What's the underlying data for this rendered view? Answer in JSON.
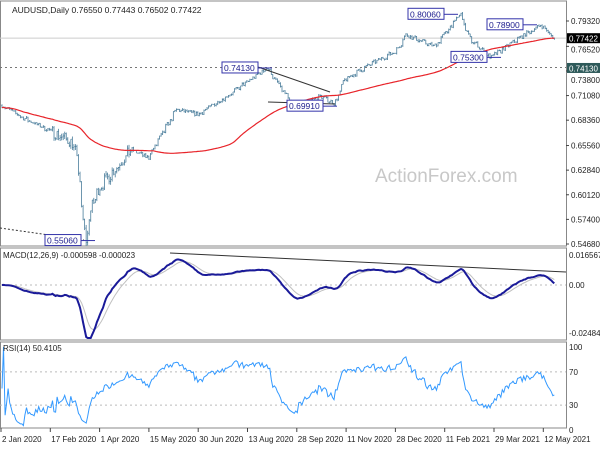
{
  "header": {
    "symbol": "AUDUSD,Daily",
    "ohlc": "0.76550 0.77443 0.76502 0.77422"
  },
  "macd_header": "MACD(12,26,9) -0.000598 -0.000023",
  "rsi_header": "RSI(14) 50.4105",
  "watermark": "ActionForex.com",
  "colors": {
    "bars": "#4a7d9b",
    "ma": "#e8242a",
    "macd": "#1a1a99",
    "signal": "#c0c0c0",
    "rsi": "#3399ff",
    "label_border": "#3333aa"
  },
  "chart_data": {
    "type": "line",
    "title": "AUDUSD Daily",
    "price_axis_ticks": [
      "0.79320",
      "0.76520",
      "0.73800",
      "0.71080",
      "0.68360",
      "0.65560",
      "0.62840",
      "0.60120",
      "0.57400",
      "0.54680"
    ],
    "current_price": "0.77422",
    "support_level": "0.74130",
    "date_ticks": [
      "2 Jan 2020",
      "17 Feb 2020",
      "1 Apr 2020",
      "15 May 2020",
      "30 Jun 2020",
      "13 Aug 2020",
      "28 Sep 2020",
      "11 Nov 2020",
      "28 Dec 2020",
      "11 Feb 2021",
      "29 Mar 2021",
      "12 May 2021"
    ],
    "close_keypoints": [
      [
        "2020-01-02",
        0.7
      ],
      [
        "2020-01-22",
        0.686
      ],
      [
        "2020-02-17",
        0.671
      ],
      [
        "2020-03-05",
        0.66
      ],
      [
        "2020-03-10",
        0.65
      ],
      [
        "2020-03-19",
        0.5506
      ],
      [
        "2020-03-25",
        0.59
      ],
      [
        "2020-04-01",
        0.61
      ],
      [
        "2020-04-30",
        0.651
      ],
      [
        "2020-05-15",
        0.642
      ],
      [
        "2020-06-10",
        0.695
      ],
      [
        "2020-06-30",
        0.69
      ],
      [
        "2020-07-31",
        0.714
      ],
      [
        "2020-09-01",
        0.7413
      ],
      [
        "2020-09-25",
        0.6991
      ],
      [
        "2020-10-20",
        0.71
      ],
      [
        "2020-11-02",
        0.702
      ],
      [
        "2020-11-11",
        0.728
      ],
      [
        "2020-12-04",
        0.745
      ],
      [
        "2020-12-28",
        0.76
      ],
      [
        "2021-01-06",
        0.778
      ],
      [
        "2021-02-01",
        0.765
      ],
      [
        "2021-02-25",
        0.8006
      ],
      [
        "2021-03-05",
        0.774
      ],
      [
        "2021-03-25",
        0.753
      ],
      [
        "2021-04-19",
        0.774
      ],
      [
        "2021-05-10",
        0.789
      ],
      [
        "2021-05-21",
        0.7742
      ]
    ],
    "labels": [
      "0.80060",
      "0.78900",
      "0.75300",
      "0.74130",
      "0.69910",
      "0.55060"
    ],
    "ma_period": 100,
    "macd_axis": [
      "0.016567",
      "0.00",
      "-0.02484"
    ],
    "rsi_axis": [
      "100",
      "70",
      "30",
      "0"
    ]
  }
}
